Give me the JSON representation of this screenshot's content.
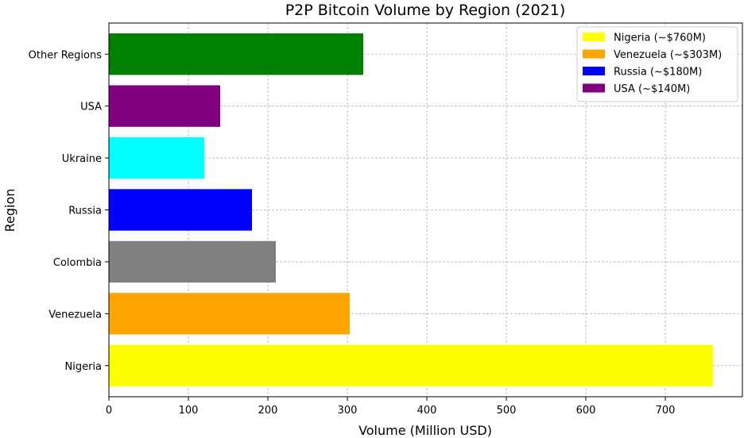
{
  "chart_data": {
    "type": "bar",
    "orientation": "horizontal",
    "title": "P2P Bitcoin Volume by Region (2021)",
    "xlabel": "Volume (Million USD)",
    "ylabel": "Region",
    "xlim": [
      0,
      797
    ],
    "xticks": [
      0,
      100,
      200,
      300,
      400,
      500,
      600,
      700
    ],
    "grid": true,
    "categories": [
      "Nigeria",
      "Venezuela",
      "Colombia",
      "Russia",
      "Ukraine",
      "USA",
      "Other Regions"
    ],
    "values": [
      760,
      303,
      210,
      180,
      120,
      140,
      320
    ],
    "colors": [
      "#ffff00",
      "#ffa500",
      "#808080",
      "#0000ff",
      "#00ffff",
      "#800080",
      "#008000"
    ],
    "legend": {
      "position": "top-right",
      "entries": [
        {
          "label": "Nigeria (~$760M)",
          "color": "#ffff00"
        },
        {
          "label": "Venezuela (~$303M)",
          "color": "#ffa500"
        },
        {
          "label": "Russia (~$180M)",
          "color": "#0000ff"
        },
        {
          "label": "USA (~$140M)",
          "color": "#800080"
        }
      ]
    }
  }
}
